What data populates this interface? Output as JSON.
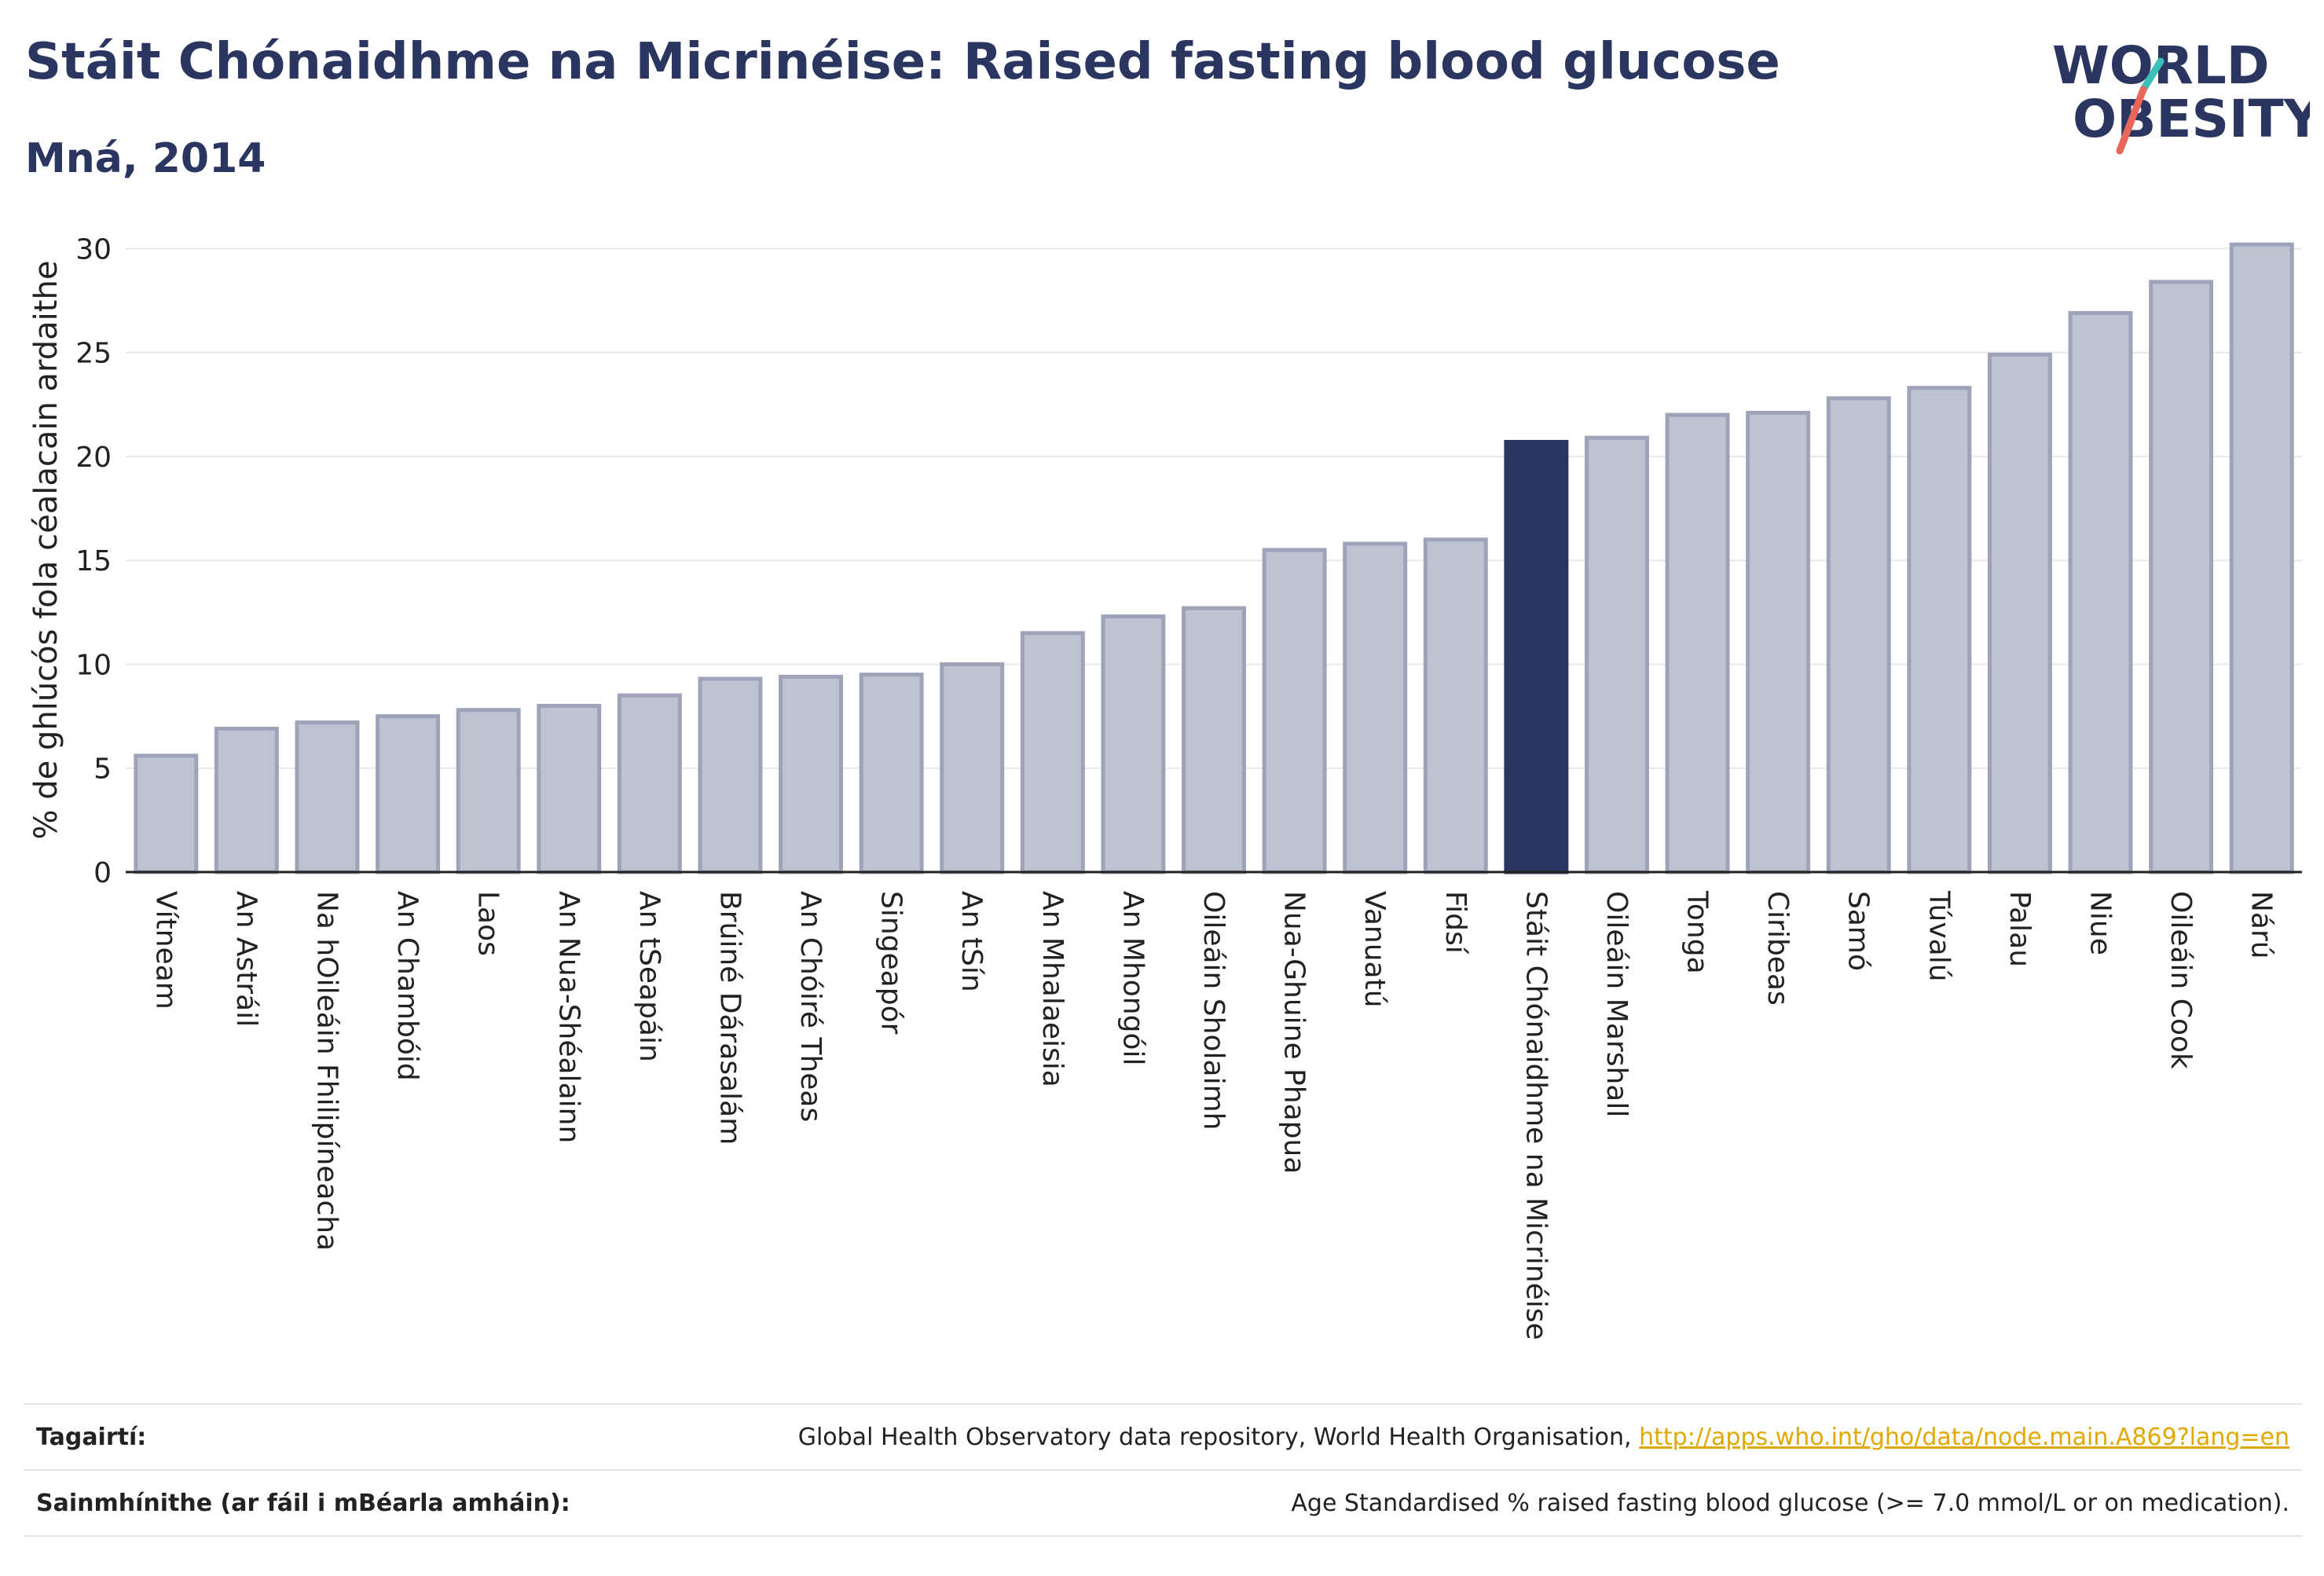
{
  "header": {
    "title": "Stáit Chónaidhme na Micrinéise: Raised fasting blood glucose",
    "subtitle": "Mná, 2014"
  },
  "logo": {
    "line1": "WORLD",
    "line2": "OBESITY",
    "colors": {
      "text": "#2a3560",
      "slash_teal": "#3bbfb8",
      "slash_coral": "#e8675a"
    }
  },
  "colors": {
    "bar": "#bfc2d0",
    "bar_stroke": "#9ea3ba",
    "highlight": "#2a3560",
    "grid": "#e8e8ee",
    "axis": "#222222"
  },
  "chart_data": {
    "type": "bar",
    "ylabel": "% de ghlúcós fola céalacain ardaithe",
    "xlabel": "",
    "ylim": [
      0,
      31
    ],
    "yticks": [
      0,
      5,
      10,
      15,
      20,
      25,
      30
    ],
    "grid": true,
    "highlight": "Stáit Chónaidhme na Micrinéise",
    "categories": [
      "Vítneam",
      "An Astráil",
      "Na hOileáin Fhilipíneacha",
      "An Chambóid",
      "Laos",
      "An Nua-Shéalainn",
      "An tSeapáin",
      "Brúiné Dárasalám",
      "An Chóiré Theas",
      "Singeapór",
      "An tSín",
      "An Mhalaeisia",
      "An Mhongóil",
      "Oileáin Sholaimh",
      "Nua-Ghuine Phapua",
      "Vanuatú",
      "Fidsí",
      "Stáit Chónaidhme na Micrinéise",
      "Oileáin Marshall",
      "Tonga",
      "Ciribeas",
      "Samó",
      "Túvalú",
      "Palau",
      "Niue",
      "Oileáin Cook",
      "Nárú"
    ],
    "values": [
      5.6,
      6.9,
      7.2,
      7.5,
      7.8,
      8.0,
      8.5,
      9.3,
      9.4,
      9.5,
      10.0,
      11.5,
      12.3,
      12.7,
      15.5,
      15.8,
      16.0,
      20.7,
      20.9,
      22.0,
      22.1,
      22.8,
      23.3,
      24.9,
      26.9,
      28.4,
      30.2
    ]
  },
  "footer": {
    "references_label": "Tagairtí:",
    "references_text": "Global Health Observatory data repository, World Health Organisation,",
    "references_link": "http://apps.who.int/gho/data/node.main.A869?lang=en",
    "definitions_label": "Sainmhínithe (ar fáil i mBéarla amháin):",
    "definitions_text": "Age Standardised % raised fasting blood glucose (>= 7.0 mmol/L or on medication)."
  }
}
